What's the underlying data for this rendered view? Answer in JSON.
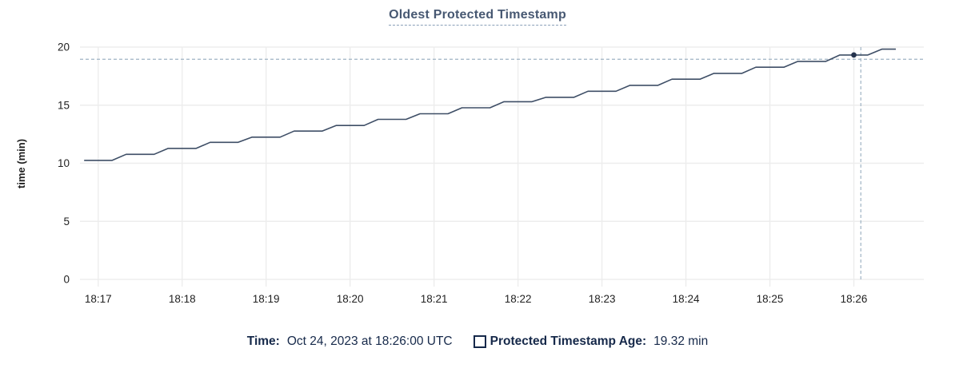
{
  "colors": {
    "series_line": "#3e4e66",
    "hover_dot": "#26344e",
    "crosshair": "#9fb3c4",
    "grid": "#ededed",
    "title_text": "#475872",
    "title_underline": "#8aa0b8",
    "legend_text": "#16294a",
    "axis_text": "#1f1f1f"
  },
  "tooltip_legend": {
    "time_label": "Time:",
    "time_value": "Oct 24, 2023 at 18:26:00 UTC",
    "series_label": "Protected Timestamp Age:",
    "series_value": "19.32 min"
  },
  "chart_data": {
    "type": "line",
    "title": "Oldest Protected Timestamp",
    "xlabel": "",
    "ylabel": "time (min)",
    "ylim": [
      0,
      20
    ],
    "y_ticks": [
      0,
      5,
      10,
      15,
      20
    ],
    "x_ticks": [
      "18:17",
      "18:18",
      "18:19",
      "18:20",
      "18:21",
      "18:22",
      "18:23",
      "18:24",
      "18:25",
      "18:26"
    ],
    "x_domain": [
      "18:16:47",
      "18:26:50"
    ],
    "grid": true,
    "legend_position": "bottom",
    "hover": {
      "time": "18:26:00",
      "value": 19.32,
      "crosshair_time": "18:26:05",
      "crosshair_value": 18.95
    },
    "series": [
      {
        "name": "Protected Timestamp Age",
        "unit": "min",
        "points": [
          [
            "18:16:50",
            10.25
          ],
          [
            "18:17:00",
            10.25
          ],
          [
            "18:17:10",
            10.25
          ],
          [
            "18:17:20",
            10.77
          ],
          [
            "18:17:30",
            10.77
          ],
          [
            "18:17:40",
            10.77
          ],
          [
            "18:17:50",
            11.28
          ],
          [
            "18:18:00",
            11.28
          ],
          [
            "18:18:10",
            11.28
          ],
          [
            "18:18:20",
            11.8
          ],
          [
            "18:18:30",
            11.8
          ],
          [
            "18:18:40",
            11.8
          ],
          [
            "18:18:50",
            12.25
          ],
          [
            "18:19:00",
            12.25
          ],
          [
            "18:19:10",
            12.25
          ],
          [
            "18:19:20",
            12.77
          ],
          [
            "18:19:30",
            12.77
          ],
          [
            "18:19:40",
            12.77
          ],
          [
            "18:19:50",
            13.25
          ],
          [
            "18:20:00",
            13.25
          ],
          [
            "18:20:10",
            13.25
          ],
          [
            "18:20:20",
            13.78
          ],
          [
            "18:20:30",
            13.78
          ],
          [
            "18:20:40",
            13.78
          ],
          [
            "18:20:50",
            14.26
          ],
          [
            "18:21:00",
            14.26
          ],
          [
            "18:21:10",
            14.26
          ],
          [
            "18:21:20",
            14.78
          ],
          [
            "18:21:30",
            14.78
          ],
          [
            "18:21:40",
            14.78
          ],
          [
            "18:21:50",
            15.3
          ],
          [
            "18:22:00",
            15.3
          ],
          [
            "18:22:10",
            15.3
          ],
          [
            "18:22:20",
            15.68
          ],
          [
            "18:22:30",
            15.68
          ],
          [
            "18:22:40",
            15.68
          ],
          [
            "18:22:50",
            16.2
          ],
          [
            "18:23:00",
            16.2
          ],
          [
            "18:23:10",
            16.2
          ],
          [
            "18:23:20",
            16.71
          ],
          [
            "18:23:30",
            16.71
          ],
          [
            "18:23:40",
            16.71
          ],
          [
            "18:23:50",
            17.24
          ],
          [
            "18:24:00",
            17.24
          ],
          [
            "18:24:10",
            17.24
          ],
          [
            "18:24:20",
            17.74
          ],
          [
            "18:24:30",
            17.74
          ],
          [
            "18:24:40",
            17.74
          ],
          [
            "18:24:50",
            18.27
          ],
          [
            "18:25:00",
            18.27
          ],
          [
            "18:25:10",
            18.27
          ],
          [
            "18:25:20",
            18.77
          ],
          [
            "18:25:30",
            18.77
          ],
          [
            "18:25:40",
            18.77
          ],
          [
            "18:25:50",
            19.32
          ],
          [
            "18:26:00",
            19.32
          ],
          [
            "18:26:10",
            19.32
          ],
          [
            "18:26:20",
            19.82
          ],
          [
            "18:26:30",
            19.82
          ]
        ]
      }
    ]
  }
}
